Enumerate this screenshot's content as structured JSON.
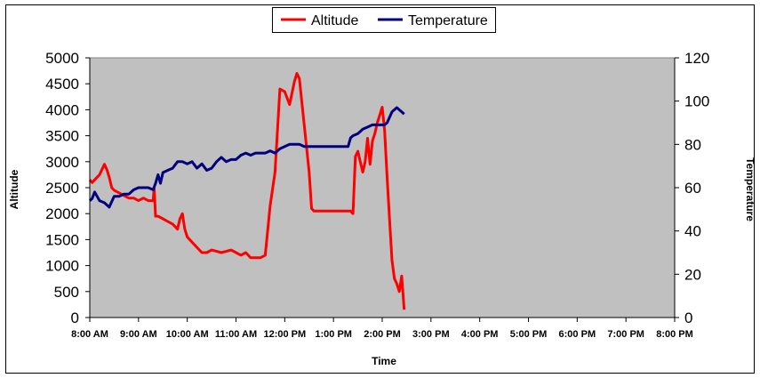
{
  "chart_data": {
    "type": "line",
    "xlabel": "Time",
    "ylabel_left": "Altitude",
    "ylabel_right": "Temperature",
    "x_ticks": [
      "8:00 AM",
      "9:00 AM",
      "10:00 AM",
      "11:00 AM",
      "12:00 PM",
      "1:00 PM",
      "2:00 PM",
      "3:00 PM",
      "4:00 PM",
      "5:00 PM",
      "6:00 PM",
      "7:00 PM",
      "8:00 PM"
    ],
    "xlim": [
      8,
      20
    ],
    "ylim_left": [
      0,
      5000
    ],
    "ylim_right": [
      0,
      120
    ],
    "y_ticks_left": [
      0,
      500,
      1000,
      1500,
      2000,
      2500,
      3000,
      3500,
      4000,
      4500,
      5000
    ],
    "y_ticks_right": [
      0,
      20,
      40,
      60,
      80,
      100,
      120
    ],
    "plot_background": "#c0c0c0",
    "grid": false,
    "legend_position": "top-center",
    "series": [
      {
        "name": "Altitude",
        "axis": "left",
        "color": "#ff0000",
        "x": [
          8.0,
          8.05,
          8.1,
          8.2,
          8.3,
          8.35,
          8.4,
          8.45,
          8.5,
          8.6,
          8.7,
          8.8,
          8.9,
          9.0,
          9.1,
          9.2,
          9.3,
          9.32,
          9.35,
          9.4,
          9.5,
          9.6,
          9.7,
          9.8,
          9.85,
          9.9,
          9.95,
          10.0,
          10.1,
          10.2,
          10.3,
          10.4,
          10.5,
          10.7,
          10.9,
          11.0,
          11.1,
          11.2,
          11.3,
          11.4,
          11.5,
          11.6,
          11.7,
          11.8,
          11.9,
          12.0,
          12.1,
          12.2,
          12.25,
          12.3,
          12.4,
          12.5,
          12.55,
          12.6,
          12.7,
          12.8,
          13.0,
          13.2,
          13.35,
          13.4,
          13.45,
          13.5,
          13.55,
          13.6,
          13.65,
          13.7,
          13.75,
          13.8,
          13.85,
          13.9,
          13.95,
          14.0,
          14.05,
          14.1,
          14.15,
          14.2,
          14.25,
          14.3,
          14.35,
          14.4,
          14.45
        ],
        "values": [
          2650,
          2600,
          2650,
          2750,
          2950,
          2850,
          2700,
          2500,
          2450,
          2400,
          2350,
          2300,
          2300,
          2250,
          2300,
          2250,
          2250,
          2500,
          1950,
          1950,
          1900,
          1850,
          1800,
          1700,
          1900,
          2000,
          1700,
          1550,
          1450,
          1350,
          1250,
          1250,
          1300,
          1250,
          1300,
          1250,
          1200,
          1250,
          1150,
          1150,
          1150,
          1200,
          2150,
          2800,
          4400,
          4350,
          4100,
          4550,
          4700,
          4600,
          3700,
          2800,
          2100,
          2050,
          2050,
          2050,
          2050,
          2050,
          2050,
          2000,
          3100,
          3200,
          3000,
          2800,
          3000,
          3450,
          2950,
          3400,
          3550,
          3750,
          3900,
          4050,
          3600,
          2700,
          1900,
          1100,
          750,
          650,
          500,
          800,
          150
        ]
      },
      {
        "name": "Temperature",
        "axis": "right",
        "color": "#000080",
        "x": [
          8.0,
          8.05,
          8.1,
          8.15,
          8.2,
          8.3,
          8.4,
          8.5,
          8.6,
          8.7,
          8.8,
          8.9,
          9.0,
          9.1,
          9.2,
          9.3,
          9.35,
          9.4,
          9.45,
          9.5,
          9.6,
          9.7,
          9.8,
          9.9,
          10.0,
          10.1,
          10.2,
          10.3,
          10.4,
          10.5,
          10.6,
          10.7,
          10.8,
          10.9,
          11.0,
          11.1,
          11.2,
          11.3,
          11.4,
          11.5,
          11.6,
          11.7,
          11.8,
          11.9,
          12.0,
          12.1,
          12.2,
          12.3,
          12.4,
          12.5,
          12.6,
          12.7,
          12.8,
          12.9,
          13.0,
          13.1,
          13.2,
          13.3,
          13.35,
          13.4,
          13.5,
          13.6,
          13.7,
          13.8,
          13.9,
          14.0,
          14.05,
          14.1,
          14.2,
          14.3,
          14.4,
          14.45
        ],
        "values": [
          54,
          55,
          58,
          56,
          54,
          53,
          51,
          56,
          56,
          57,
          57,
          59,
          60,
          60,
          60,
          59,
          62,
          66,
          62,
          67,
          68,
          69,
          72,
          72,
          71,
          72,
          69,
          71,
          68,
          69,
          72,
          74,
          72,
          73,
          73,
          75,
          76,
          75,
          76,
          76,
          76,
          77,
          76,
          78,
          79,
          80,
          80,
          80,
          79,
          79,
          79,
          79,
          79,
          79,
          79,
          79,
          79,
          79,
          83,
          84,
          85,
          87,
          88,
          89,
          89,
          89,
          89,
          90,
          95,
          97,
          95,
          94
        ]
      }
    ]
  }
}
